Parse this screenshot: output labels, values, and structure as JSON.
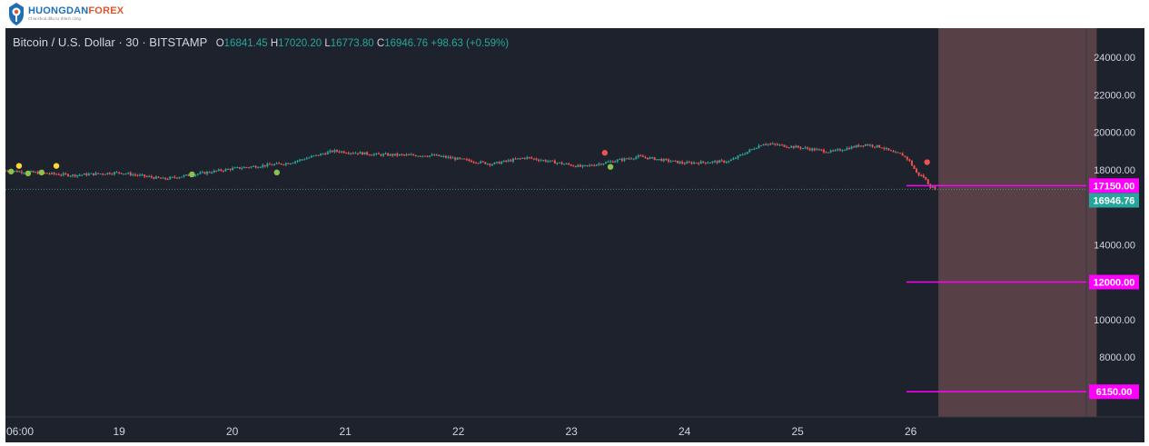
{
  "brand": {
    "name_part1": "HUONGDAN",
    "name_part2": "FOREX",
    "tagline": "Chia khoá đầu tư thành công",
    "colors": {
      "blue": "#1f6fb5",
      "orange": "#e0542a"
    }
  },
  "legend": {
    "symbol": "Bitcoin / U.S. Dollar · 30 · BITSTAMP",
    "open_label": "O",
    "open": "16841.45",
    "high_label": "H",
    "high": "17020.20",
    "low_label": "L",
    "low": "16773.80",
    "close_label": "C",
    "close": "16946.76",
    "change": "+98.63 (+0.59%)"
  },
  "colors": {
    "background": "#1e222d",
    "up": "#26a69a",
    "down": "#ef5350",
    "magenta": "#ff00ff",
    "zone": "#5b4348",
    "text": "#d1d4dc"
  },
  "chart_data": {
    "type": "candlestick",
    "title": "Bitcoin / U.S. Dollar",
    "interval": "30",
    "exchange": "BITSTAMP",
    "ylim": [
      5500,
      25200
    ],
    "y_ticks": [
      6000,
      8000,
      10000,
      12000,
      14000,
      16000,
      18000,
      20000,
      22000,
      24000
    ],
    "y_tick_labels": [
      "8000.00",
      "10000.00",
      "14000.00",
      "18000.00",
      "20000.00",
      "22000.00",
      "24000.00"
    ],
    "x_tick_labels": [
      "06:00",
      "19",
      "20",
      "21",
      "22",
      "23",
      "24",
      "25",
      "26"
    ],
    "price_path": {
      "x": [
        0,
        0.6,
        1.0,
        1.4,
        2.0,
        2.5,
        2.9,
        3.3,
        3.8,
        4.3,
        4.6,
        5.1,
        5.6,
        6.0,
        6.4,
        6.7,
        7.0,
        7.3,
        7.6,
        7.75,
        7.85,
        7.93,
        7.99,
        8.06,
        8.12,
        8.18,
        8.24
      ],
      "y": [
        17950,
        17700,
        17850,
        17500,
        18050,
        18350,
        19000,
        18800,
        18750,
        18300,
        18650,
        18150,
        18700,
        18350,
        18450,
        19400,
        19200,
        18950,
        19350,
        19200,
        18900,
        18800,
        18500,
        17800,
        17600,
        17100,
        16946.76
      ]
    },
    "last_price": 16946.76,
    "levels": [
      {
        "label": "17150.00",
        "value": 17150
      },
      {
        "label": "12000.00",
        "value": 12000
      },
      {
        "label": "6150.00",
        "value": 6150
      }
    ],
    "markers": [
      {
        "x": 0.05,
        "y": 17900,
        "color": "green"
      },
      {
        "x": 0.12,
        "y": 18200,
        "color": "yellow"
      },
      {
        "x": 0.2,
        "y": 17800,
        "color": "green"
      },
      {
        "x": 0.32,
        "y": 17850,
        "color": "green"
      },
      {
        "x": 0.45,
        "y": 18200,
        "color": "yellow"
      },
      {
        "x": 1.65,
        "y": 17750,
        "color": "green"
      },
      {
        "x": 2.4,
        "y": 17850,
        "color": "green"
      },
      {
        "x": 5.3,
        "y": 18900,
        "color": "red"
      },
      {
        "x": 5.35,
        "y": 18150,
        "color": "green"
      },
      {
        "x": 8.15,
        "y": 18400,
        "color": "red"
      }
    ],
    "zone": {
      "x_start": 8.25,
      "x_end": 9.65
    },
    "dotted_line_y": 17150,
    "grid": false
  }
}
